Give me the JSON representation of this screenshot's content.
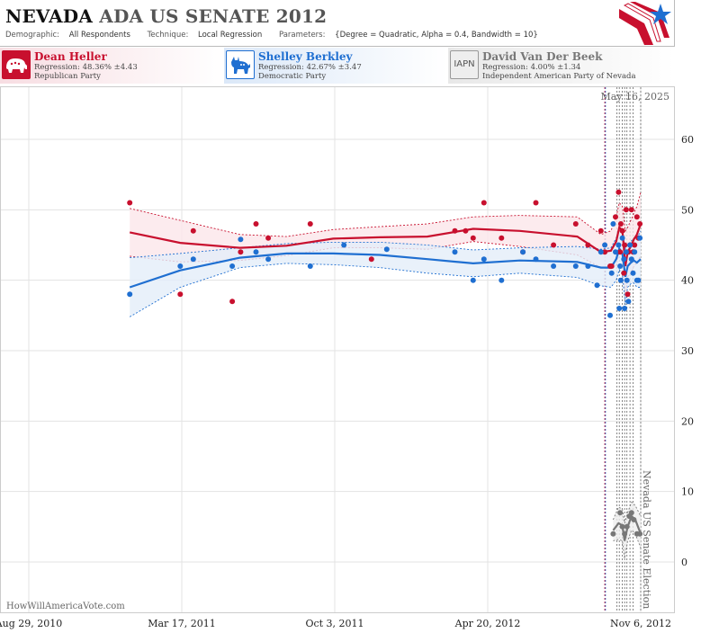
{
  "header": {
    "state": "NEVADA",
    "race": "ADA US SENATE 2012",
    "demographic_label": "Demographic:",
    "demographic_value": "All Respondents",
    "technique_label": "Technique:",
    "technique_value": "Local Regression",
    "parameters_label": "Parameters:",
    "parameters_value": "{Degree = Quadratic, Alpha = 0.4, Bandwidth = 10}",
    "logo_icon": "star-flag-logo-icon"
  },
  "candidates": [
    {
      "name": "Dean Heller",
      "regression": "Regression: 48.36% ±4.43",
      "party": "Republican Party",
      "icon": "elephant-icon",
      "color": "#c8102e",
      "bg_start": "#f7dde2"
    },
    {
      "name": "Shelley Berkley",
      "regression": "Regression: 42.67% ±3.47",
      "party": "Democratic Party",
      "icon": "donkey-icon",
      "color": "#1f6fd1",
      "bg_start": "#dbe8f8"
    },
    {
      "name": "David Van Der Beek",
      "regression": "Regression: 4.00% ±1.34",
      "party": "Independent American Party  of Nevada",
      "icon": "iapn-badge-icon",
      "icon_text": "IAPN",
      "color": "#777777",
      "bg_start": "#e8e8e8"
    }
  ],
  "chart_data": {
    "type": "scatter",
    "date_label": "May 16, 2025",
    "watermark": "HowWillAmericaVote.com",
    "event_label": "Nevada US Senate Election",
    "ylim": [
      0,
      60
    ],
    "y_ticks": [
      0,
      10,
      20,
      30,
      40,
      50,
      60
    ],
    "x_ticks": [
      "Aug 29, 2010",
      "Mar 17, 2011",
      "Oct 3, 2011",
      "Apr 20, 2012",
      "Nov 6, 2012"
    ],
    "xlim": [
      "2010-08-29",
      "2012-11-08"
    ],
    "event_lines": [
      {
        "date": "2012-09-20",
        "color": "#c8102e"
      },
      {
        "date": "2012-09-21",
        "color": "#1f6fd1"
      },
      {
        "date": "2012-10-06",
        "color": "#666666"
      },
      {
        "date": "2012-10-09",
        "color": "#666666"
      },
      {
        "date": "2012-10-13",
        "color": "#666666"
      },
      {
        "date": "2012-10-16",
        "color": "#666666"
      },
      {
        "date": "2012-10-19",
        "color": "#666666"
      },
      {
        "date": "2012-10-23",
        "color": "#666666"
      },
      {
        "date": "2012-10-27",
        "color": "#666666"
      },
      {
        "date": "2012-11-06",
        "color": "#666666"
      }
    ],
    "series": [
      {
        "name": "Dean Heller",
        "color": "#c8102e",
        "band_color": "#fbe6ea",
        "points": [
          [
            "2011-01-08",
            51
          ],
          [
            "2011-03-15",
            38
          ],
          [
            "2011-04-01",
            47
          ],
          [
            "2011-05-22",
            37
          ],
          [
            "2011-06-02",
            44
          ],
          [
            "2011-06-22",
            48
          ],
          [
            "2011-07-08",
            46
          ],
          [
            "2011-09-01",
            48
          ],
          [
            "2011-11-20",
            43
          ],
          [
            "2012-03-08",
            47
          ],
          [
            "2012-03-22",
            47
          ],
          [
            "2012-04-01",
            46
          ],
          [
            "2012-04-15",
            51
          ],
          [
            "2012-05-08",
            46
          ],
          [
            "2012-06-05",
            44
          ],
          [
            "2012-06-22",
            51
          ],
          [
            "2012-07-15",
            45
          ],
          [
            "2012-08-13",
            48
          ],
          [
            "2012-08-29",
            45
          ],
          [
            "2012-09-15",
            47
          ],
          [
            "2012-09-20",
            44
          ],
          [
            "2012-09-27",
            42
          ],
          [
            "2012-09-29",
            42
          ],
          [
            "2012-10-04",
            49
          ],
          [
            "2012-10-08",
            52.5
          ],
          [
            "2012-10-10",
            44
          ],
          [
            "2012-10-11",
            48
          ],
          [
            "2012-10-13",
            47
          ],
          [
            "2012-10-15",
            41
          ],
          [
            "2012-10-16",
            45
          ],
          [
            "2012-10-18",
            50
          ],
          [
            "2012-10-20",
            38
          ],
          [
            "2012-10-21",
            44
          ],
          [
            "2012-10-23",
            45
          ],
          [
            "2012-10-25",
            50
          ],
          [
            "2012-10-27",
            44
          ],
          [
            "2012-10-29",
            45
          ],
          [
            "2012-11-01",
            49
          ],
          [
            "2012-11-03",
            46
          ],
          [
            "2012-11-05",
            48
          ]
        ],
        "fit": [
          [
            "2011-01-08",
            46.8
          ],
          [
            "2011-03-15",
            45.3
          ],
          [
            "2011-06-01",
            44.6
          ],
          [
            "2011-08-01",
            44.9
          ],
          [
            "2011-10-01",
            45.9
          ],
          [
            "2011-12-01",
            46.1
          ],
          [
            "2012-02-01",
            46.2
          ],
          [
            "2012-04-01",
            47.3
          ],
          [
            "2012-06-01",
            47.0
          ],
          [
            "2012-08-15",
            46.2
          ],
          [
            "2012-09-15",
            44.0
          ],
          [
            "2012-09-28",
            44.2
          ],
          [
            "2012-10-05",
            45.5
          ],
          [
            "2012-10-09",
            47.5
          ],
          [
            "2012-10-13",
            47.1
          ],
          [
            "2012-10-17",
            42.0
          ],
          [
            "2012-10-20",
            44.0
          ],
          [
            "2012-10-24",
            44.8
          ],
          [
            "2012-10-28",
            45.8
          ],
          [
            "2012-11-01",
            46.5
          ],
          [
            "2012-11-06",
            48.0
          ]
        ],
        "upper": [
          [
            "2011-01-08",
            50.2
          ],
          [
            "2011-03-15",
            48.5
          ],
          [
            "2011-06-01",
            46.5
          ],
          [
            "2011-08-01",
            46.2
          ],
          [
            "2011-10-01",
            47.2
          ],
          [
            "2011-12-01",
            47.6
          ],
          [
            "2012-02-01",
            48.0
          ],
          [
            "2012-04-01",
            49.0
          ],
          [
            "2012-06-01",
            49.2
          ],
          [
            "2012-08-15",
            49.0
          ],
          [
            "2012-09-15",
            46.5
          ],
          [
            "2012-09-28",
            47.0
          ],
          [
            "2012-10-05",
            49.0
          ],
          [
            "2012-10-09",
            51.0
          ],
          [
            "2012-10-13",
            50.5
          ],
          [
            "2012-10-17",
            47.0
          ],
          [
            "2012-10-20",
            47.5
          ],
          [
            "2012-10-24",
            48.5
          ],
          [
            "2012-10-28",
            49.5
          ],
          [
            "2012-11-01",
            50.5
          ],
          [
            "2012-11-06",
            52.5
          ]
        ],
        "lower": [
          [
            "2011-01-08",
            43.4
          ],
          [
            "2011-03-15",
            42.6
          ],
          [
            "2011-06-01",
            42.8
          ],
          [
            "2011-08-01",
            43.5
          ],
          [
            "2011-10-01",
            44.6
          ],
          [
            "2011-12-01",
            44.6
          ],
          [
            "2012-02-01",
            44.4
          ],
          [
            "2012-04-01",
            45.5
          ],
          [
            "2012-06-01",
            44.8
          ],
          [
            "2012-08-15",
            43.6
          ],
          [
            "2012-09-15",
            41.8
          ],
          [
            "2012-09-28",
            41.6
          ],
          [
            "2012-10-05",
            42.0
          ],
          [
            "2012-10-09",
            44.0
          ],
          [
            "2012-10-13",
            43.5
          ],
          [
            "2012-10-17",
            37.5
          ],
          [
            "2012-10-20",
            40.5
          ],
          [
            "2012-10-24",
            41.0
          ],
          [
            "2012-10-28",
            42.0
          ],
          [
            "2012-11-01",
            42.5
          ],
          [
            "2012-11-06",
            43.5
          ]
        ]
      },
      {
        "name": "Shelley Berkley",
        "color": "#1f6fd1",
        "band_color": "#e3edf9",
        "points": [
          [
            "2011-01-08",
            38
          ],
          [
            "2011-03-15",
            42
          ],
          [
            "2011-04-01",
            43
          ],
          [
            "2011-05-22",
            42
          ],
          [
            "2011-06-02",
            45.8
          ],
          [
            "2011-06-22",
            44
          ],
          [
            "2011-07-08",
            43
          ],
          [
            "2011-09-01",
            42
          ],
          [
            "2011-10-15",
            45
          ],
          [
            "2011-12-10",
            44.4
          ],
          [
            "2012-03-08",
            44
          ],
          [
            "2012-04-01",
            40
          ],
          [
            "2012-04-15",
            43
          ],
          [
            "2012-05-08",
            40
          ],
          [
            "2012-06-05",
            44
          ],
          [
            "2012-06-22",
            43
          ],
          [
            "2012-07-15",
            42
          ],
          [
            "2012-08-13",
            42
          ],
          [
            "2012-08-29",
            42
          ],
          [
            "2012-09-10",
            39.3
          ],
          [
            "2012-09-15",
            44
          ],
          [
            "2012-09-20",
            45
          ],
          [
            "2012-09-27",
            35
          ],
          [
            "2012-09-29",
            41
          ],
          [
            "2012-10-01",
            48
          ],
          [
            "2012-10-04",
            44
          ],
          [
            "2012-10-08",
            45
          ],
          [
            "2012-10-09",
            36
          ],
          [
            "2012-10-10",
            42
          ],
          [
            "2012-10-11",
            40
          ],
          [
            "2012-10-13",
            46
          ],
          [
            "2012-10-15",
            43
          ],
          [
            "2012-10-16",
            36
          ],
          [
            "2012-10-18",
            44
          ],
          [
            "2012-10-19",
            40
          ],
          [
            "2012-10-21",
            37
          ],
          [
            "2012-10-23",
            45
          ],
          [
            "2012-10-25",
            43
          ],
          [
            "2012-10-27",
            41
          ],
          [
            "2012-10-29",
            44
          ],
          [
            "2012-11-01",
            40
          ],
          [
            "2012-11-03",
            40
          ],
          [
            "2012-11-05",
            46
          ]
        ],
        "fit": [
          [
            "2011-01-08",
            39.0
          ],
          [
            "2011-03-15",
            41.4
          ],
          [
            "2011-06-01",
            43.2
          ],
          [
            "2011-08-01",
            43.8
          ],
          [
            "2011-10-01",
            43.8
          ],
          [
            "2011-12-01",
            43.6
          ],
          [
            "2012-02-01",
            43.0
          ],
          [
            "2012-04-01",
            42.4
          ],
          [
            "2012-06-01",
            42.8
          ],
          [
            "2012-08-15",
            42.6
          ],
          [
            "2012-09-15",
            41.8
          ],
          [
            "2012-09-28",
            41.8
          ],
          [
            "2012-10-05",
            43.0
          ],
          [
            "2012-10-09",
            44.5
          ],
          [
            "2012-10-13",
            43.8
          ],
          [
            "2012-10-17",
            40.5
          ],
          [
            "2012-10-20",
            42.0
          ],
          [
            "2012-10-24",
            42.5
          ],
          [
            "2012-10-28",
            42.8
          ],
          [
            "2012-11-01",
            42.5
          ],
          [
            "2012-11-06",
            43.0
          ]
        ],
        "upper": [
          [
            "2011-01-08",
            43.2
          ],
          [
            "2011-03-15",
            43.8
          ],
          [
            "2011-06-01",
            44.6
          ],
          [
            "2011-08-01",
            45.2
          ],
          [
            "2011-10-01",
            45.4
          ],
          [
            "2011-12-01",
            45.4
          ],
          [
            "2012-02-01",
            45.0
          ],
          [
            "2012-04-01",
            44.3
          ],
          [
            "2012-06-01",
            44.6
          ],
          [
            "2012-08-15",
            44.8
          ],
          [
            "2012-09-15",
            44.4
          ],
          [
            "2012-09-28",
            44.6
          ],
          [
            "2012-10-05",
            46.0
          ],
          [
            "2012-10-09",
            47.5
          ],
          [
            "2012-10-13",
            46.8
          ],
          [
            "2012-10-17",
            44.5
          ],
          [
            "2012-10-20",
            45.0
          ],
          [
            "2012-10-24",
            45.5
          ],
          [
            "2012-10-28",
            46.0
          ],
          [
            "2012-11-01",
            46.0
          ],
          [
            "2012-11-06",
            47.0
          ]
        ],
        "lower": [
          [
            "2011-01-08",
            34.8
          ],
          [
            "2011-03-15",
            39.0
          ],
          [
            "2011-06-01",
            41.8
          ],
          [
            "2011-08-01",
            42.4
          ],
          [
            "2011-10-01",
            42.2
          ],
          [
            "2011-12-01",
            41.8
          ],
          [
            "2012-02-01",
            41.0
          ],
          [
            "2012-04-01",
            40.5
          ],
          [
            "2012-06-01",
            41.0
          ],
          [
            "2012-08-15",
            40.4
          ],
          [
            "2012-09-15",
            39.2
          ],
          [
            "2012-09-28",
            39.0
          ],
          [
            "2012-10-05",
            40.0
          ],
          [
            "2012-10-09",
            41.5
          ],
          [
            "2012-10-13",
            40.8
          ],
          [
            "2012-10-17",
            36.5
          ],
          [
            "2012-10-20",
            39.0
          ],
          [
            "2012-10-24",
            39.5
          ],
          [
            "2012-10-28",
            39.6
          ],
          [
            "2012-11-01",
            39.0
          ],
          [
            "2012-11-06",
            39.0
          ]
        ]
      },
      {
        "name": "David Van Der Beek",
        "color": "#777777",
        "band_color": "#eeeeee",
        "points": [
          [
            "2012-10-01",
            4
          ],
          [
            "2012-10-10",
            7
          ],
          [
            "2012-10-13",
            5
          ],
          [
            "2012-10-16",
            4
          ],
          [
            "2012-10-19",
            5
          ],
          [
            "2012-10-22",
            6.5
          ],
          [
            "2012-10-25",
            7
          ],
          [
            "2012-10-28",
            6
          ],
          [
            "2012-11-01",
            4
          ],
          [
            "2012-11-05",
            4
          ]
        ],
        "fit": [
          [
            "2012-10-01",
            4.5
          ],
          [
            "2012-10-08",
            5.5
          ],
          [
            "2012-10-13",
            5.2
          ],
          [
            "2012-10-16",
            3.0
          ],
          [
            "2012-10-20",
            5.0
          ],
          [
            "2012-10-25",
            6.5
          ],
          [
            "2012-10-30",
            6.0
          ],
          [
            "2012-11-06",
            4.0
          ]
        ],
        "upper": [
          [
            "2012-10-01",
            6.0
          ],
          [
            "2012-10-08",
            7.8
          ],
          [
            "2012-10-13",
            7.5
          ],
          [
            "2012-10-16",
            5.5
          ],
          [
            "2012-10-20",
            7.0
          ],
          [
            "2012-10-25",
            8.5
          ],
          [
            "2012-10-30",
            8.0
          ],
          [
            "2012-11-06",
            6.5
          ]
        ],
        "lower": [
          [
            "2012-10-01",
            3.0
          ],
          [
            "2012-10-08",
            3.2
          ],
          [
            "2012-10-13",
            3.0
          ],
          [
            "2012-10-16",
            0.5
          ],
          [
            "2012-10-20",
            3.0
          ],
          [
            "2012-10-25",
            4.5
          ],
          [
            "2012-10-30",
            4.0
          ],
          [
            "2012-11-06",
            2.0
          ]
        ]
      }
    ]
  }
}
